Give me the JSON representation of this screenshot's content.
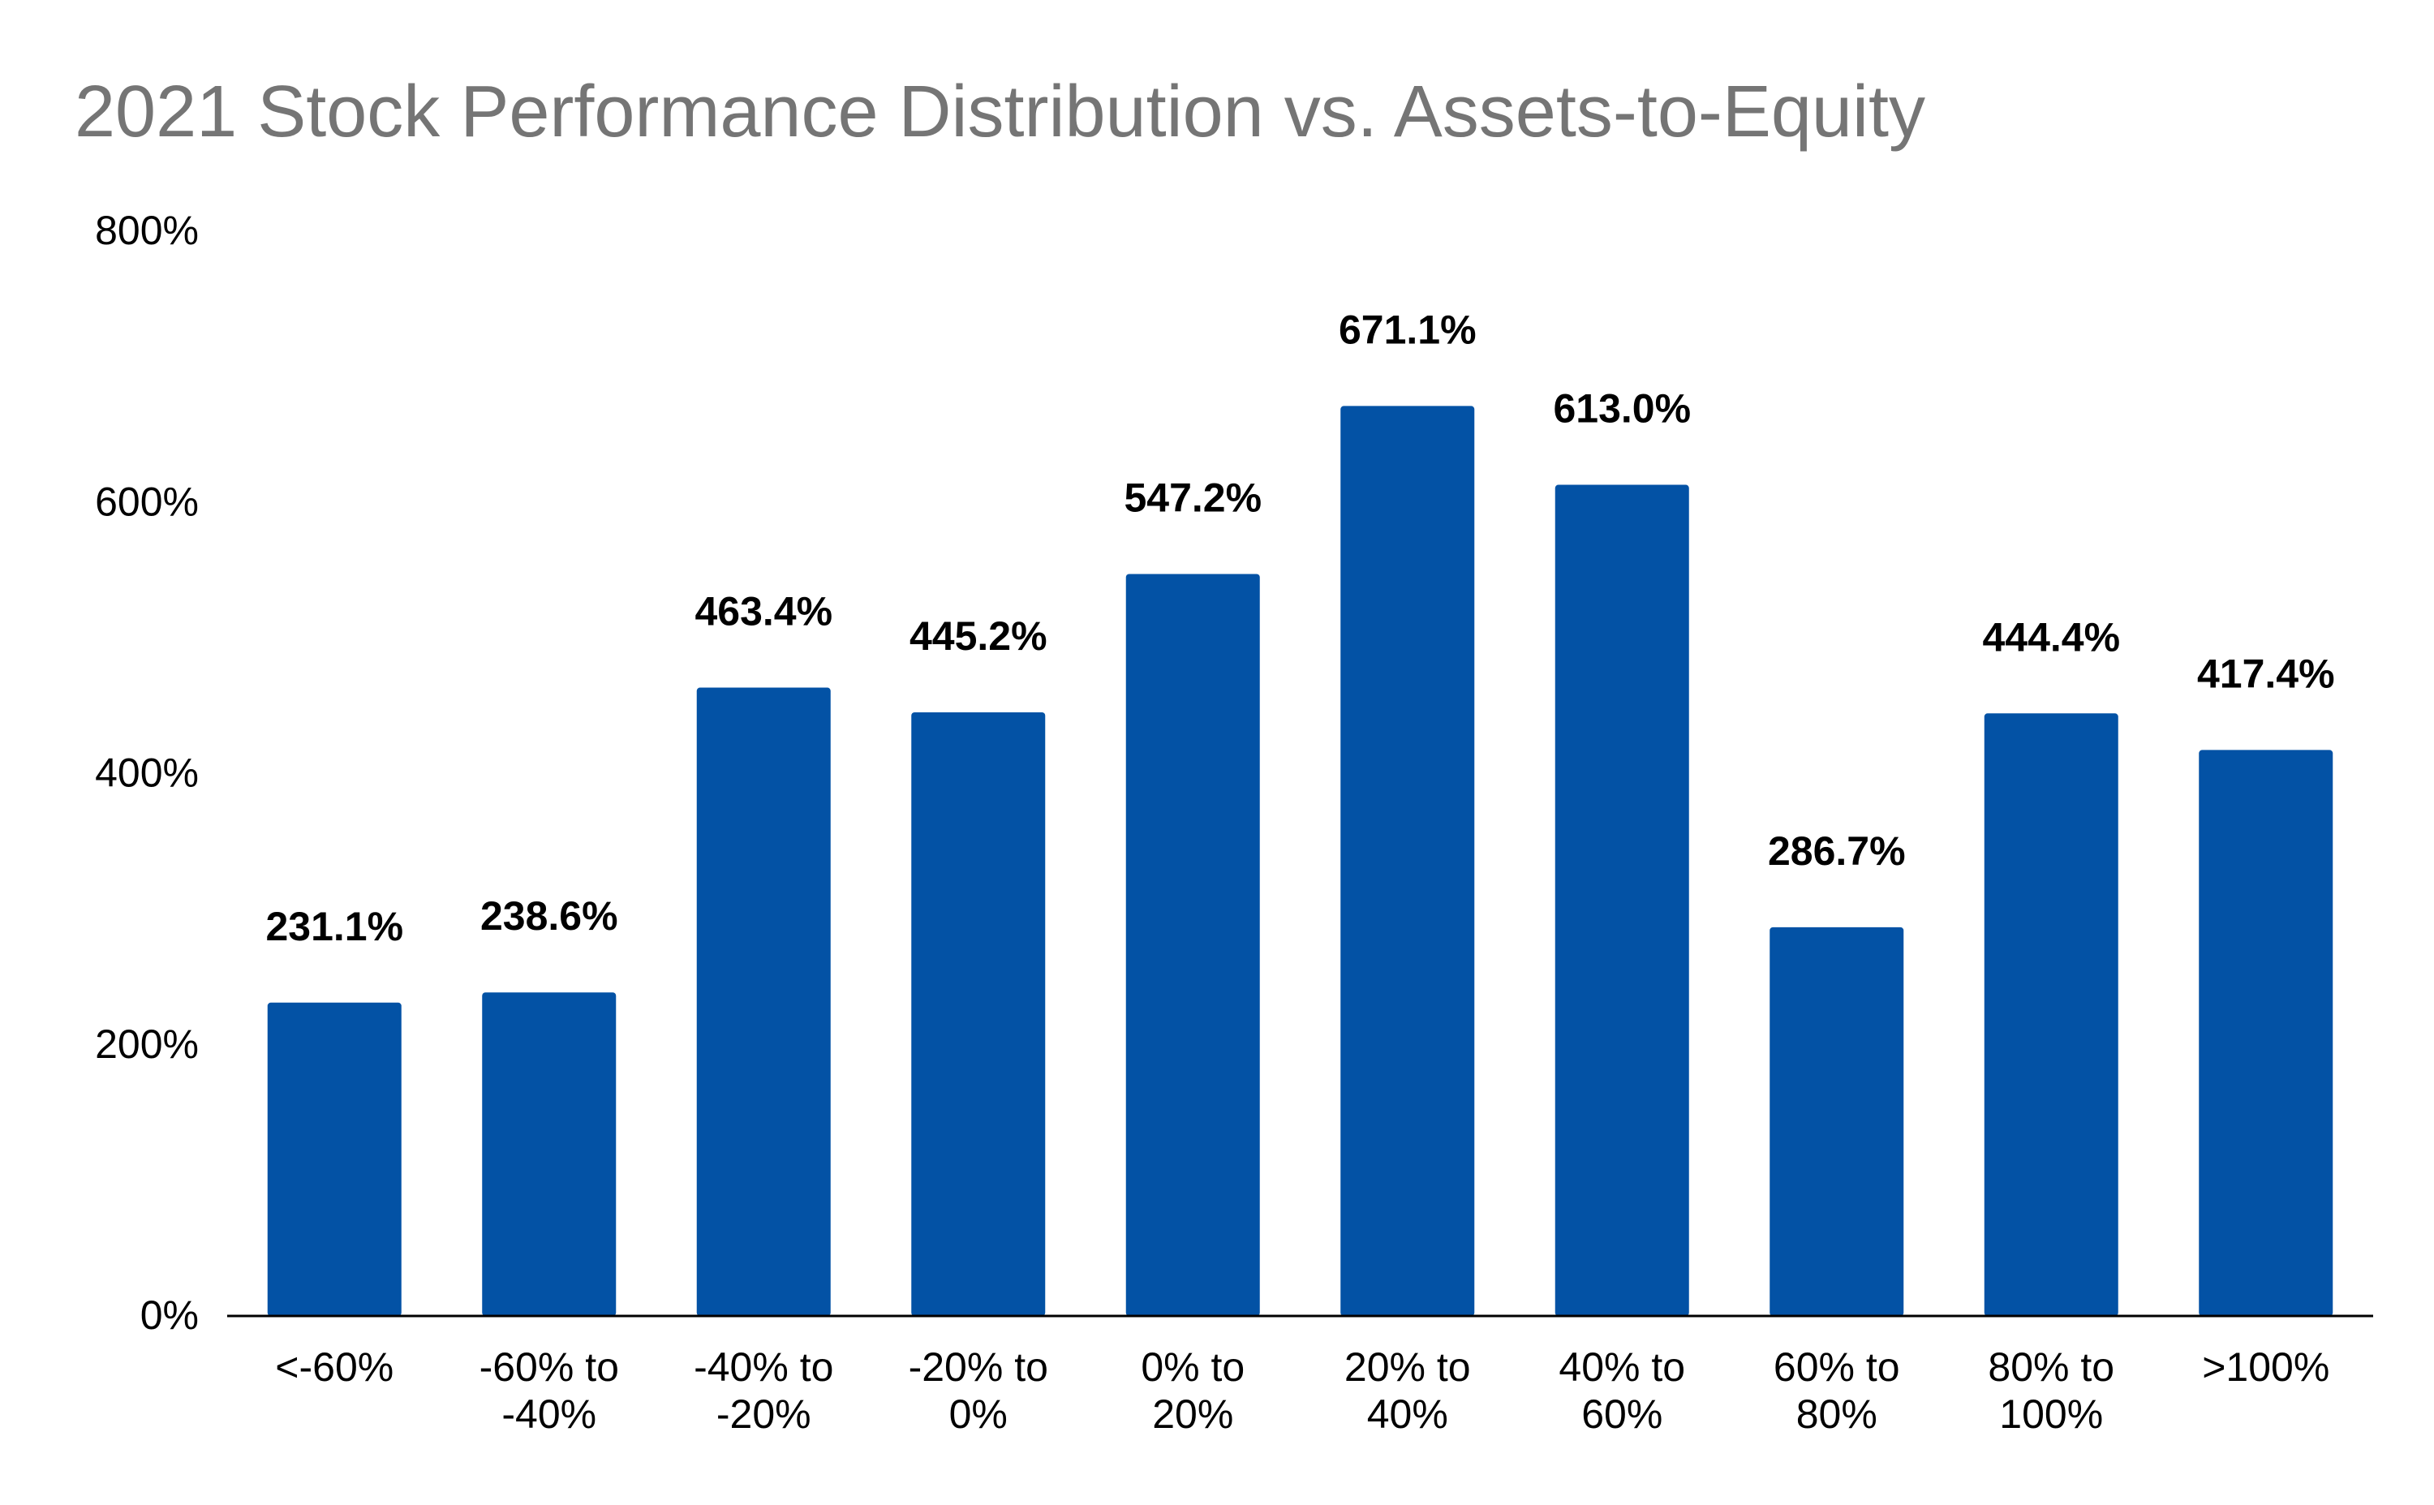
{
  "chart_data": {
    "type": "bar",
    "title": "2021 Stock Performance Distribution vs. Assets-to-Equity",
    "xlabel": "",
    "ylabel": "",
    "ylim": [
      0,
      800
    ],
    "yticks": [
      0,
      200,
      400,
      600,
      800
    ],
    "ytick_labels": [
      "0%",
      "200%",
      "400%",
      "600%",
      "800%"
    ],
    "grid": false,
    "legend": "none",
    "categories": [
      [
        "<-60%"
      ],
      [
        "-60% to",
        "-40%"
      ],
      [
        "-40% to",
        "-20%"
      ],
      [
        "-20% to",
        "0%"
      ],
      [
        "0% to",
        "20%"
      ],
      [
        "20% to",
        "40%"
      ],
      [
        "40% to",
        "60%"
      ],
      [
        "60% to",
        "80%"
      ],
      [
        "80% to",
        "100%"
      ],
      [
        ">100%"
      ]
    ],
    "values": [
      231.1,
      238.6,
      463.4,
      445.2,
      547.2,
      671.1,
      613.0,
      286.7,
      444.4,
      417.4
    ],
    "data_labels": [
      "231.1%",
      "238.6%",
      "463.4%",
      "445.2%",
      "547.2%",
      "671.1%",
      "613.0%",
      "286.7%",
      "444.4%",
      "417.4%"
    ],
    "bar_color": "#0352A5",
    "axis_color": "#000000",
    "title_color": "#757575"
  }
}
